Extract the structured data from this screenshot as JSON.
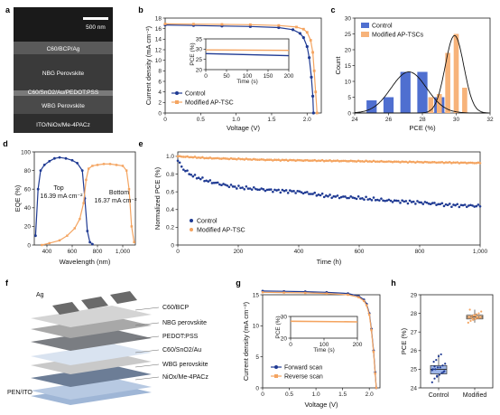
{
  "panels": {
    "a": "a",
    "b": "b",
    "c": "c",
    "d": "d",
    "e": "e",
    "f": "f",
    "g": "g",
    "h": "h"
  },
  "sem": {
    "scale": "500 nm",
    "layers": [
      "C60/BCP/Ag",
      "NBG Perovskite",
      "C60/SnO2/Au/PEDOT:PSS",
      "WBG Perovskite",
      "ITO/NiOx/Me-4PACz"
    ]
  },
  "stack": {
    "top_label": "Ag",
    "layers": [
      "C60/BCP",
      "NBG perovskite",
      "PEDOT:PSS",
      "C60/SnO2/Au",
      "WBG perovskite",
      "NiOx/Me-4PACz"
    ],
    "bottom_label": "PEN/ITO"
  },
  "colors": {
    "control": "#1f3a93",
    "modified": "#f4a460",
    "control_bar": "#4f6fd0",
    "modified_bar": "#f7b37a",
    "sem_bg": "#2b2b2b"
  },
  "chart_data": [
    {
      "id": "b",
      "type": "line",
      "xlabel": "Voltage (V)",
      "ylabel": "Current density (mA cm⁻²)",
      "xlim": [
        0,
        2.2
      ],
      "ylim": [
        0,
        18
      ],
      "xticks": [
        0,
        0.5,
        1.0,
        1.5,
        2.0
      ],
      "yticks": [
        0,
        2,
        4,
        6,
        8,
        10,
        12,
        14,
        16,
        18
      ],
      "xtick_labels": [
        "0",
        "0.5",
        "1.0",
        "1.5",
        "2.0"
      ],
      "legend": [
        "Control",
        "Modified AP-TSC"
      ],
      "series": [
        {
          "name": "Control",
          "x": [
            0,
            0.4,
            0.8,
            1.2,
            1.6,
            1.8,
            1.9,
            1.95,
            2.0,
            2.03,
            2.06,
            2.08,
            2.09
          ],
          "y": [
            16.7,
            16.6,
            16.5,
            16.4,
            16.2,
            15.8,
            15.1,
            14.3,
            12.6,
            10.5,
            6.8,
            3.2,
            0
          ]
        },
        {
          "name": "Modified AP-TSC",
          "x": [
            0,
            0.4,
            0.8,
            1.2,
            1.6,
            1.85,
            1.95,
            2.0,
            2.05,
            2.08,
            2.1,
            2.12,
            2.14
          ],
          "y": [
            16.9,
            16.85,
            16.8,
            16.75,
            16.6,
            16.3,
            15.9,
            15.3,
            13.8,
            11.5,
            8.0,
            4.0,
            0
          ]
        }
      ],
      "inset": {
        "xlabel": "Time (s)",
        "ylabel": "PCE (%)",
        "xlim": [
          0,
          200
        ],
        "ylim": [
          20,
          35
        ],
        "xticks": [
          0,
          50,
          100,
          150,
          200
        ],
        "yticks": [
          20,
          25,
          30,
          35
        ],
        "series": [
          {
            "name": "Control",
            "x": [
              0,
              200
            ],
            "y": [
              27.8,
              26.8
            ]
          },
          {
            "name": "Modified AP-TSC",
            "x": [
              0,
              200
            ],
            "y": [
              29.6,
              29.4
            ]
          }
        ]
      }
    },
    {
      "id": "c",
      "type": "bar",
      "xlabel": "PCE (%)",
      "ylabel": "Count",
      "xlim": [
        24,
        32
      ],
      "ylim": [
        0,
        30
      ],
      "xticks": [
        24,
        26,
        28,
        30,
        32
      ],
      "yticks": [
        0,
        5,
        10,
        15,
        20,
        25,
        30
      ],
      "legend": [
        "Control",
        "Modified AP-TSCs"
      ],
      "series": [
        {
          "name": "Control",
          "bins": [
            25,
            26,
            27,
            28,
            29
          ],
          "values": [
            4,
            5,
            13,
            13,
            5
          ]
        },
        {
          "name": "Modified AP-TSCs",
          "bins": [
            28.5,
            29,
            29.5,
            30,
            30.5
          ],
          "values": [
            5,
            6,
            19,
            25,
            8
          ]
        }
      ],
      "fits": [
        {
          "name": "Control",
          "mean": 27.2,
          "sd": 1.05,
          "peak": 13
        },
        {
          "name": "Modified AP-TSCs",
          "mean": 29.9,
          "sd": 0.55,
          "peak": 24.5
        }
      ]
    },
    {
      "id": "d",
      "type": "line",
      "xlabel": "Wavelength (nm)",
      "ylabel": "EQE (%)",
      "xlim": [
        300,
        1100
      ],
      "ylim": [
        0,
        100
      ],
      "xticks": [
        400,
        600,
        800,
        1000
      ],
      "yticks": [
        0,
        20,
        40,
        60,
        80,
        100
      ],
      "xtick_labels": [
        "400",
        "600",
        "800",
        "1,000"
      ],
      "annotations": [
        {
          "text": "Top",
          "value": "16.39 mA cm⁻²"
        },
        {
          "text": "Bottom",
          "value": "16.37 mA cm⁻²"
        }
      ],
      "series": [
        {
          "name": "Top",
          "x": [
            310,
            330,
            350,
            380,
            420,
            460,
            500,
            550,
            600,
            640,
            680,
            700,
            720,
            740,
            760
          ],
          "y": [
            10,
            60,
            80,
            86,
            90,
            93,
            94,
            93,
            91,
            88,
            80,
            50,
            15,
            3,
            1
          ]
        },
        {
          "name": "Bottom",
          "x": [
            360,
            420,
            500,
            560,
            620,
            660,
            690,
            710,
            730,
            760,
            800,
            850,
            900,
            950,
            1000,
            1030,
            1050,
            1070,
            1090
          ],
          "y": [
            0,
            2,
            5,
            10,
            18,
            28,
            45,
            70,
            82,
            85,
            86,
            87,
            87,
            86,
            85,
            80,
            60,
            20,
            3
          ]
        }
      ]
    },
    {
      "id": "e",
      "type": "scatter",
      "xlabel": "Time (h)",
      "ylabel": "Normalized PCE (%)",
      "xlim": [
        0,
        1000
      ],
      "ylim": [
        0,
        1.05
      ],
      "xticks": [
        0,
        200,
        400,
        600,
        800,
        1000
      ],
      "yticks": [
        0,
        0.2,
        0.4,
        0.6,
        0.8,
        1.0
      ],
      "xtick_labels": [
        "0",
        "200",
        "400",
        "600",
        "800",
        "1,000"
      ],
      "ytick_labels": [
        "0",
        "0.2",
        "0.4",
        "0.6",
        "0.8",
        "1.0"
      ],
      "legend": [
        "Control",
        "Modified AP-TSC"
      ],
      "series": [
        {
          "name": "Control",
          "x": [
            0,
            20,
            50,
            100,
            150,
            200,
            300,
            400,
            500,
            600,
            700,
            800,
            900,
            1000
          ],
          "y": [
            0.95,
            0.85,
            0.78,
            0.72,
            0.68,
            0.65,
            0.62,
            0.6,
            0.55,
            0.53,
            0.5,
            0.48,
            0.45,
            0.44
          ]
        },
        {
          "name": "Modified AP-TSC",
          "x": [
            0,
            50,
            100,
            200,
            300,
            400,
            500,
            600,
            700,
            800,
            900,
            1000
          ],
          "y": [
            1.0,
            0.99,
            0.98,
            0.97,
            0.96,
            0.955,
            0.95,
            0.945,
            0.94,
            0.935,
            0.93,
            0.925
          ]
        }
      ]
    },
    {
      "id": "g",
      "type": "line",
      "xlabel": "Voltage (V)",
      "ylabel": "Current density (mA cm⁻²)",
      "xlim": [
        0,
        2.2
      ],
      "ylim": [
        0,
        15
      ],
      "xticks": [
        0,
        0.5,
        1.0,
        1.5,
        2.0
      ],
      "yticks": [
        0,
        5,
        10,
        15
      ],
      "xtick_labels": [
        "0",
        "0.5",
        "1.0",
        "1.5",
        "2.0"
      ],
      "legend": [
        "Forward scan",
        "Reverse scan"
      ],
      "series": [
        {
          "name": "Forward scan",
          "x": [
            0,
            0.4,
            0.8,
            1.2,
            1.6,
            1.8,
            1.9,
            1.95,
            2.0,
            2.04,
            2.08,
            2.11,
            2.13
          ],
          "y": [
            15.6,
            15.55,
            15.5,
            15.4,
            15.2,
            14.8,
            14.2,
            13.5,
            12.0,
            9.5,
            6.0,
            2.5,
            0
          ]
        },
        {
          "name": "Reverse scan",
          "x": [
            0,
            0.4,
            0.8,
            1.2,
            1.6,
            1.8,
            1.9,
            1.95,
            2.0,
            2.04,
            2.08,
            2.11,
            2.13
          ],
          "y": [
            15.4,
            15.35,
            15.3,
            15.2,
            15.0,
            14.6,
            14.0,
            13.3,
            11.8,
            9.3,
            5.8,
            2.3,
            0
          ]
        }
      ],
      "inset": {
        "xlabel": "Time (s)",
        "ylabel": "PCE (%)",
        "xlim": [
          0,
          200
        ],
        "ylim": [
          20,
          30
        ],
        "xticks": [
          0,
          100,
          200
        ],
        "yticks": [
          20,
          30
        ],
        "series": [
          {
            "name": "Stabilized",
            "x": [
              0,
              200
            ],
            "y": [
              27.8,
              27.5
            ]
          }
        ]
      }
    },
    {
      "id": "h",
      "type": "scatter",
      "xlabel": "",
      "ylabel": "PCE (%)",
      "ylim": [
        24,
        29
      ],
      "yticks": [
        24,
        25,
        26,
        27,
        28,
        29
      ],
      "categories": [
        "Control",
        "Modified"
      ],
      "boxes": [
        {
          "name": "Control",
          "q1": 24.75,
          "median": 25.0,
          "q3": 25.2,
          "min": 24.3,
          "max": 25.8,
          "points": [
            24.3,
            24.5,
            24.6,
            24.7,
            24.8,
            24.9,
            25.0,
            25.0,
            25.1,
            25.1,
            25.2,
            25.3,
            25.4,
            25.5,
            25.7,
            25.8,
            24.85,
            24.95,
            25.15,
            24.65
          ]
        },
        {
          "name": "Modified",
          "q1": 27.7,
          "median": 27.8,
          "q3": 27.9,
          "min": 27.5,
          "max": 28.2,
          "points": [
            27.5,
            27.6,
            27.65,
            27.7,
            27.75,
            27.8,
            27.8,
            27.85,
            27.9,
            27.95,
            28.0,
            28.1,
            28.2,
            27.72,
            27.88,
            27.78
          ]
        }
      ]
    }
  ]
}
